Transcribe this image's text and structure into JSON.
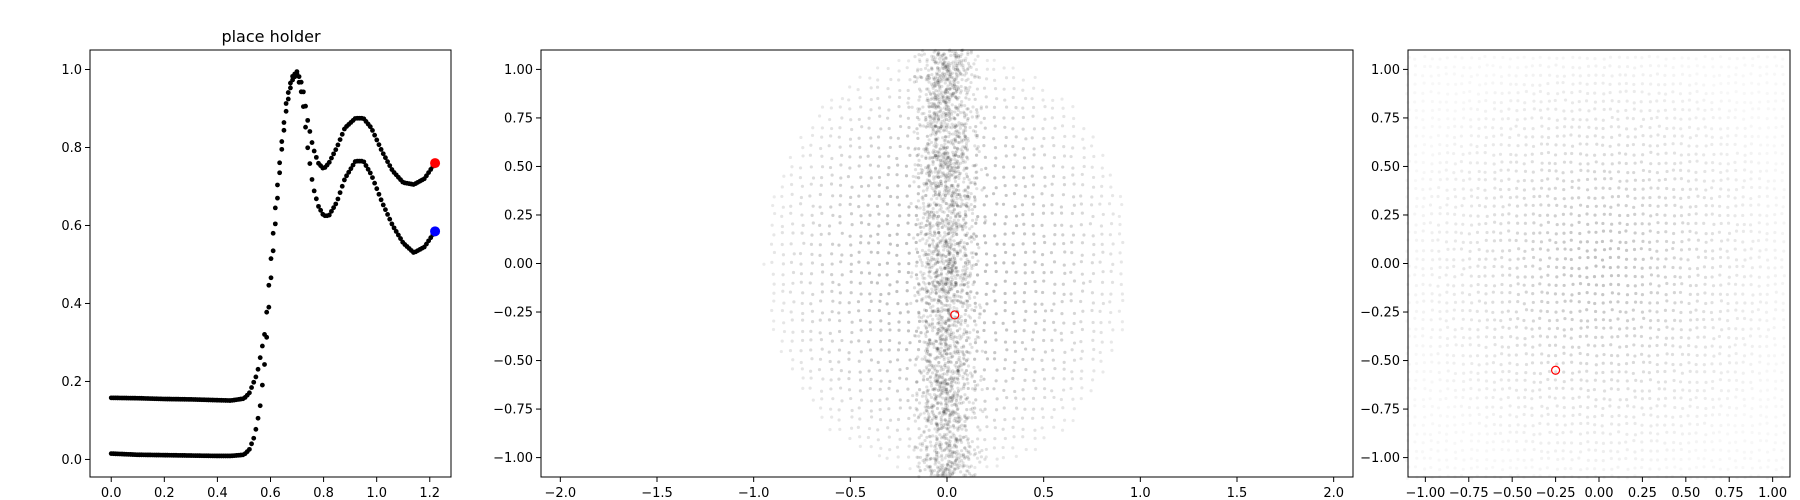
{
  "chart_data": [
    {
      "type": "scatter",
      "title": "place holder",
      "xlim": [
        -0.08,
        1.28
      ],
      "ylim": [
        -0.045,
        1.05
      ],
      "xticks": [
        "0.0",
        "0.2",
        "0.4",
        "0.6",
        "0.8",
        "1.0",
        "1.2"
      ],
      "yticks": [
        "0.0",
        "0.2",
        "0.4",
        "0.6",
        "0.8",
        "1.0"
      ],
      "series": [
        {
          "color": "#000000",
          "description_key": "upper-curve",
          "x": [
            0.0,
            0.1,
            0.2,
            0.3,
            0.4,
            0.45,
            0.5,
            0.52,
            0.55,
            0.58,
            0.6,
            0.62,
            0.64,
            0.66,
            0.68,
            0.7,
            0.72,
            0.74,
            0.76,
            0.78,
            0.8,
            0.82,
            0.85,
            0.88,
            0.92,
            0.95,
            0.98,
            1.02,
            1.06,
            1.1,
            1.14,
            1.18,
            1.22
          ],
          "y": [
            0.158,
            0.157,
            0.155,
            0.154,
            0.152,
            0.151,
            0.156,
            0.17,
            0.22,
            0.33,
            0.5,
            0.66,
            0.8,
            0.92,
            0.98,
            0.995,
            0.96,
            0.87,
            0.8,
            0.76,
            0.745,
            0.76,
            0.8,
            0.85,
            0.875,
            0.875,
            0.85,
            0.79,
            0.74,
            0.71,
            0.705,
            0.72,
            0.76
          ]
        },
        {
          "color": "#000000",
          "description_key": "lower-curve",
          "x": [
            0.0,
            0.1,
            0.2,
            0.3,
            0.4,
            0.45,
            0.5,
            0.52,
            0.54,
            0.56,
            0.58,
            0.6,
            0.62,
            0.64,
            0.66,
            0.68,
            0.7,
            0.72,
            0.74,
            0.76,
            0.78,
            0.8,
            0.82,
            0.85,
            0.88,
            0.92,
            0.95,
            0.98,
            1.02,
            1.06,
            1.1,
            1.14,
            1.18,
            1.22
          ],
          "y": [
            0.015,
            0.012,
            0.011,
            0.01,
            0.009,
            0.009,
            0.012,
            0.025,
            0.06,
            0.13,
            0.26,
            0.45,
            0.62,
            0.78,
            0.9,
            0.97,
            0.99,
            0.93,
            0.8,
            0.7,
            0.65,
            0.625,
            0.625,
            0.66,
            0.72,
            0.765,
            0.765,
            0.73,
            0.66,
            0.6,
            0.555,
            0.53,
            0.545,
            0.585
          ]
        }
      ],
      "markers": [
        {
          "x": 1.22,
          "y": 0.76,
          "color": "#ff0000"
        },
        {
          "x": 1.22,
          "y": 0.585,
          "color": "#0000ff"
        }
      ]
    },
    {
      "type": "scatter",
      "xlim": [
        -2.1,
        2.1
      ],
      "ylim": [
        -1.1,
        1.1
      ],
      "xticks": [
        "−2.0",
        "−1.5",
        "−1.0",
        "−0.5",
        "0.0",
        "0.5",
        "1.0",
        "1.5",
        "2.0"
      ],
      "yticks": [
        "1.00",
        "0.75",
        "0.50",
        "0.25",
        "0.00",
        "−0.25",
        "−0.50",
        "−0.75",
        "−1.00"
      ],
      "cloud": {
        "shape": "disk",
        "x_radius": 0.95,
        "y_radius": 1.1,
        "color": "#000000",
        "dense_band_x_halfwidth": 0.22
      },
      "marker": {
        "x": 0.04,
        "y": -0.265,
        "color": "#ff0000",
        "style": "hollow-circle"
      }
    },
    {
      "type": "scatter",
      "xlim": [
        -1.1,
        1.1
      ],
      "ylim": [
        -1.1,
        1.1
      ],
      "xticks": [
        "−1.00",
        "−0.75",
        "−0.50",
        "−0.25",
        "0.00",
        "0.25",
        "0.50",
        "0.75",
        "1.00"
      ],
      "yticks": [
        "1.00",
        "0.75",
        "0.50",
        "0.25",
        "0.00",
        "−0.25",
        "−0.50",
        "−0.75",
        "−1.00"
      ],
      "cloud": {
        "shape": "disk",
        "x_radius": 1.1,
        "y_radius": 1.1,
        "color": "#000000"
      },
      "marker": {
        "x": -0.25,
        "y": -0.55,
        "color": "#ff0000",
        "style": "hollow-circle"
      }
    }
  ]
}
